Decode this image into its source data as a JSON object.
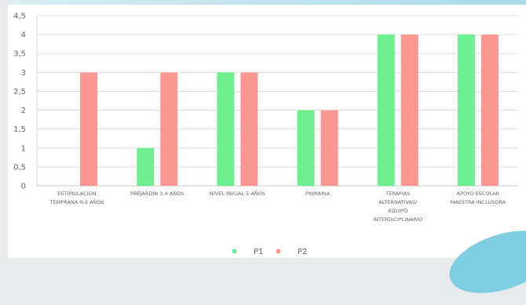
{
  "chart_data": {
    "type": "bar",
    "title": "",
    "xlabel": "",
    "ylabel": "",
    "ylim": [
      0,
      4.5
    ],
    "yticks": [
      0,
      0.5,
      1,
      1.5,
      2,
      2.5,
      3,
      3.5,
      4,
      4.5
    ],
    "ytick_labels": [
      "0",
      "0,5",
      "1",
      "1,5",
      "2",
      "2,5",
      "3",
      "3,5",
      "4",
      "4,5"
    ],
    "categories": [
      [
        "ESTIMULACION",
        "TEMPRANA 0-3 AÑOS"
      ],
      [
        "PREJARDIN 3-4 AÑOS"
      ],
      [
        "NIVEL INICIAL 5 AÑOS"
      ],
      [
        "PRIMARIA"
      ],
      [
        "TERAPIAS",
        "ALTERNATIVAS/",
        "EQUIPO",
        "INTERDICIPLINARIO"
      ],
      [
        "APOYO ESCOLAR",
        "MAESTRA INCLUSORA"
      ]
    ],
    "series": [
      {
        "name": "P1",
        "color": "#6fef8f",
        "values": [
          0,
          1,
          3,
          2,
          4,
          4
        ]
      },
      {
        "name": "P2",
        "color": "#fc9893",
        "values": [
          3,
          3,
          3,
          2,
          4,
          4
        ]
      }
    ],
    "grid": true,
    "legend": "bottom"
  }
}
